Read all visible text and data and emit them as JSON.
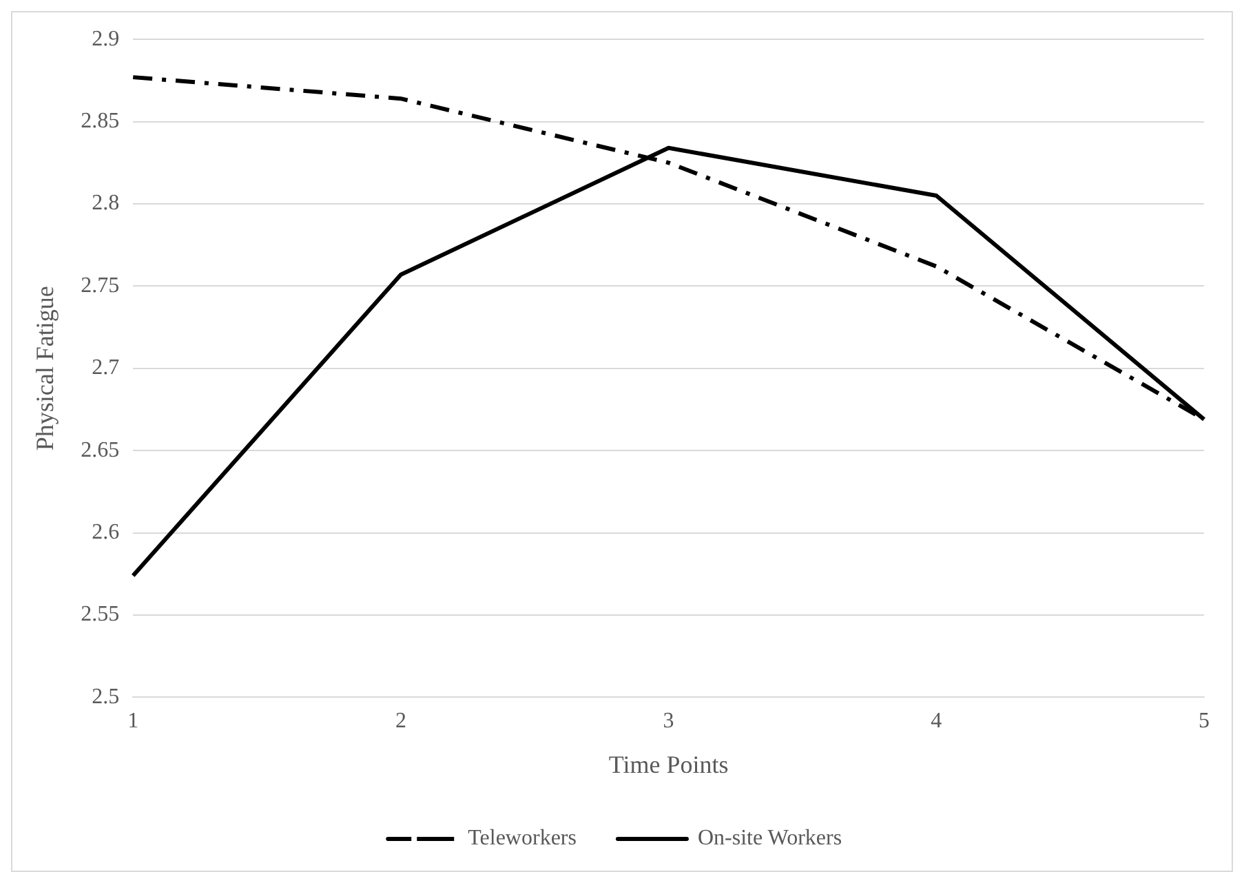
{
  "chart_data": {
    "type": "line",
    "xlabel": "Time Points",
    "ylabel": "Physical Fatigue",
    "categories": [
      "1",
      "2",
      "3",
      "4",
      "5"
    ],
    "series": [
      {
        "name": "Teleworkers",
        "color": "#000000",
        "line_style": "dashed",
        "values": [
          2.877,
          2.864,
          2.825,
          2.762,
          2.669
        ]
      },
      {
        "name": "On-site Workers",
        "color": "#000000",
        "line_style": "solid",
        "values": [
          2.574,
          2.757,
          2.834,
          2.805,
          2.669
        ]
      }
    ],
    "ylim": [
      2.5,
      2.9
    ],
    "yticks": [
      2.5,
      2.55,
      2.6,
      2.65,
      2.7,
      2.75,
      2.8,
      2.85,
      2.9
    ],
    "grid": "y",
    "legend": "bottom",
    "marker": "none"
  }
}
